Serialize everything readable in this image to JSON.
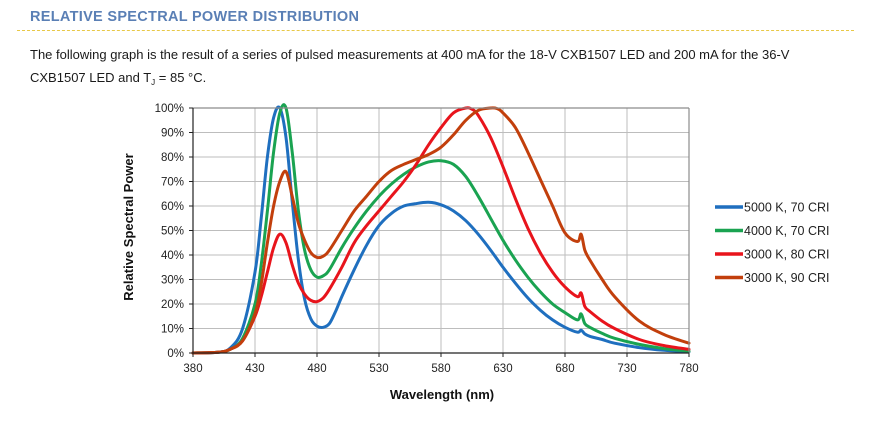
{
  "header": {
    "title": "RELATIVE SPECTRAL POWER DISTRIBUTION"
  },
  "description": {
    "line1": "The following graph is the result of a series of pulsed measurements at 400 mA for the 18-V CXB1507 LED and 200 mA for the 36-V",
    "line2_pre": "CXB1507 LED and T",
    "line2_sub": "J",
    "line2_post": " = 85 °C."
  },
  "chart_data": {
    "type": "line",
    "title": "",
    "xlabel": "Wavelength (nm)",
    "ylabel": "Relative Spectral Power",
    "xlim": [
      380,
      780
    ],
    "ylim": [
      0,
      100
    ],
    "xticks": [
      380,
      430,
      480,
      530,
      580,
      630,
      680,
      730,
      780
    ],
    "yticks": [
      0,
      10,
      20,
      30,
      40,
      50,
      60,
      70,
      80,
      90,
      100
    ],
    "ytick_labels": [
      "0%",
      "10%",
      "20%",
      "30%",
      "40%",
      "50%",
      "60%",
      "70%",
      "80%",
      "90%",
      "100%"
    ],
    "grid": true,
    "legend_position": "right",
    "series": [
      {
        "name": "5000 K, 70 CRI",
        "color": "#1f6fbf",
        "x": [
          380,
          400,
          410,
          420,
          430,
          435,
          440,
          445,
          450,
          455,
          460,
          465,
          470,
          475,
          480,
          485,
          490,
          495,
          500,
          510,
          520,
          530,
          540,
          550,
          560,
          570,
          580,
          590,
          600,
          610,
          620,
          630,
          640,
          650,
          660,
          670,
          680,
          690,
          693,
          696,
          700,
          710,
          720,
          740,
          760,
          780
        ],
        "y": [
          0,
          0.3,
          2,
          10,
          33,
          55,
          80,
          96,
          100,
          88,
          62,
          38,
          22,
          14,
          11,
          10.5,
          12,
          17,
          23,
          34,
          44,
          52,
          57,
          60,
          61,
          61.5,
          60.5,
          58,
          54,
          48.5,
          42,
          35,
          28.5,
          22.5,
          17.5,
          13.5,
          10.5,
          8.5,
          9.3,
          7.8,
          6.8,
          5.5,
          4,
          2.2,
          1.1,
          0.5
        ]
      },
      {
        "name": "4000 K, 70 CRI",
        "color": "#1aa351",
        "x": [
          380,
          400,
          410,
          420,
          430,
          435,
          440,
          445,
          450,
          455,
          460,
          465,
          470,
          475,
          480,
          485,
          490,
          500,
          510,
          520,
          530,
          540,
          550,
          560,
          570,
          580,
          590,
          600,
          610,
          620,
          630,
          640,
          650,
          660,
          670,
          680,
          690,
          693,
          696,
          700,
          710,
          720,
          740,
          760,
          780
        ],
        "y": [
          0,
          0.3,
          1.5,
          6,
          20,
          36,
          58,
          82,
          98,
          100,
          82,
          58,
          42,
          34,
          31,
          31.5,
          34,
          43,
          51,
          58,
          64,
          69,
          73,
          76,
          78,
          78.5,
          77,
          72,
          64,
          55,
          46,
          38,
          31,
          25,
          20,
          16.5,
          13.5,
          16,
          12,
          10.5,
          8,
          6,
          3.5,
          1.8,
          0.7
        ]
      },
      {
        "name": "3000 K, 80 CRI",
        "color": "#e8141c",
        "x": [
          380,
          400,
          410,
          420,
          430,
          435,
          440,
          445,
          450,
          455,
          460,
          465,
          470,
          475,
          480,
          485,
          490,
          500,
          510,
          520,
          530,
          540,
          550,
          560,
          570,
          580,
          590,
          600,
          605,
          610,
          620,
          630,
          640,
          650,
          660,
          670,
          680,
          690,
          693,
          696,
          700,
          710,
          720,
          740,
          760,
          780
        ],
        "y": [
          0,
          0.3,
          1.5,
          5,
          15,
          23,
          33,
          43,
          48.5,
          45,
          36,
          28.5,
          24,
          21.5,
          21,
          22.5,
          26,
          35,
          45,
          52,
          58,
          64,
          70,
          77,
          85,
          92,
          98,
          100,
          99.5,
          97,
          88,
          76,
          63,
          51,
          41,
          33,
          27,
          23,
          24.5,
          19,
          17,
          13,
          10,
          5.5,
          3,
          1.5
        ]
      },
      {
        "name": "3000 K, 90 CRI",
        "color": "#c23f0c",
        "x": [
          380,
          400,
          410,
          420,
          430,
          435,
          440,
          445,
          450,
          455,
          460,
          465,
          470,
          475,
          480,
          485,
          490,
          500,
          510,
          520,
          530,
          540,
          550,
          560,
          570,
          580,
          590,
          600,
          610,
          620,
          625,
          630,
          640,
          650,
          660,
          670,
          680,
          690,
          693,
          696,
          700,
          710,
          720,
          740,
          760,
          780
        ],
        "y": [
          0,
          0.3,
          1.5,
          5,
          16,
          28,
          45,
          60,
          70,
          74,
          64,
          53,
          46,
          41,
          39,
          39.5,
          42,
          50,
          58,
          64,
          70,
          74.5,
          77,
          79,
          81,
          84,
          89,
          95,
          99,
          100,
          99.8,
          98,
          92,
          82,
          71,
          60,
          49,
          45.5,
          48.5,
          42,
          38,
          30,
          23,
          13,
          7.5,
          4
        ]
      }
    ]
  }
}
